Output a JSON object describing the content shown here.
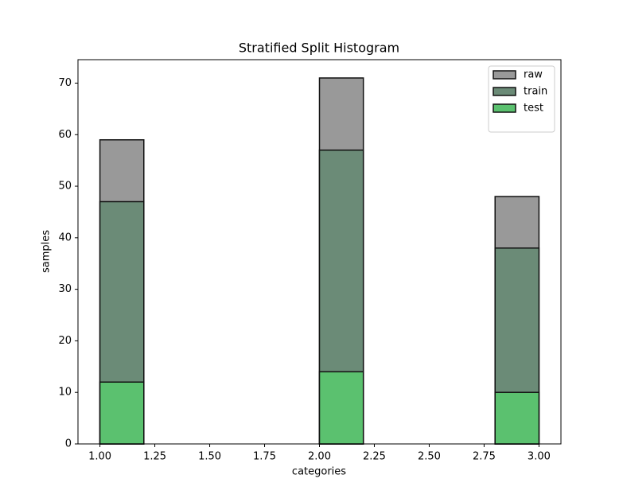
{
  "chart_data": {
    "type": "histogram",
    "title": "Stratified Split Histogram",
    "xlabel": "categories",
    "ylabel": "samples",
    "bins": [
      1.0,
      1.2,
      1.4,
      1.6,
      1.8,
      2.0,
      2.2,
      2.4,
      2.6,
      2.8,
      3.0
    ],
    "series": [
      {
        "name": "raw",
        "color": "#999999",
        "values": [
          59,
          0,
          0,
          0,
          0,
          71,
          0,
          0,
          0,
          48
        ]
      },
      {
        "name": "train",
        "color": "#6b8b77",
        "values": [
          47,
          0,
          0,
          0,
          0,
          57,
          0,
          0,
          0,
          38
        ]
      },
      {
        "name": "test",
        "color": "#5bc16f",
        "values": [
          12,
          0,
          0,
          0,
          0,
          14,
          0,
          0,
          0,
          10
        ]
      }
    ],
    "xlim": [
      0.9,
      3.1
    ],
    "ylim": [
      0,
      74.55
    ],
    "xticks": [
      {
        "value": 1.0,
        "label": "1.00"
      },
      {
        "value": 1.25,
        "label": "1.25"
      },
      {
        "value": 1.5,
        "label": "1.50"
      },
      {
        "value": 1.75,
        "label": "1.75"
      },
      {
        "value": 2.0,
        "label": "2.00"
      },
      {
        "value": 2.25,
        "label": "2.25"
      },
      {
        "value": 2.5,
        "label": "2.50"
      },
      {
        "value": 2.75,
        "label": "2.75"
      },
      {
        "value": 3.0,
        "label": "3.00"
      }
    ],
    "yticks": [
      0,
      10,
      20,
      30,
      40,
      50,
      60,
      70
    ],
    "legend": "upper right"
  }
}
